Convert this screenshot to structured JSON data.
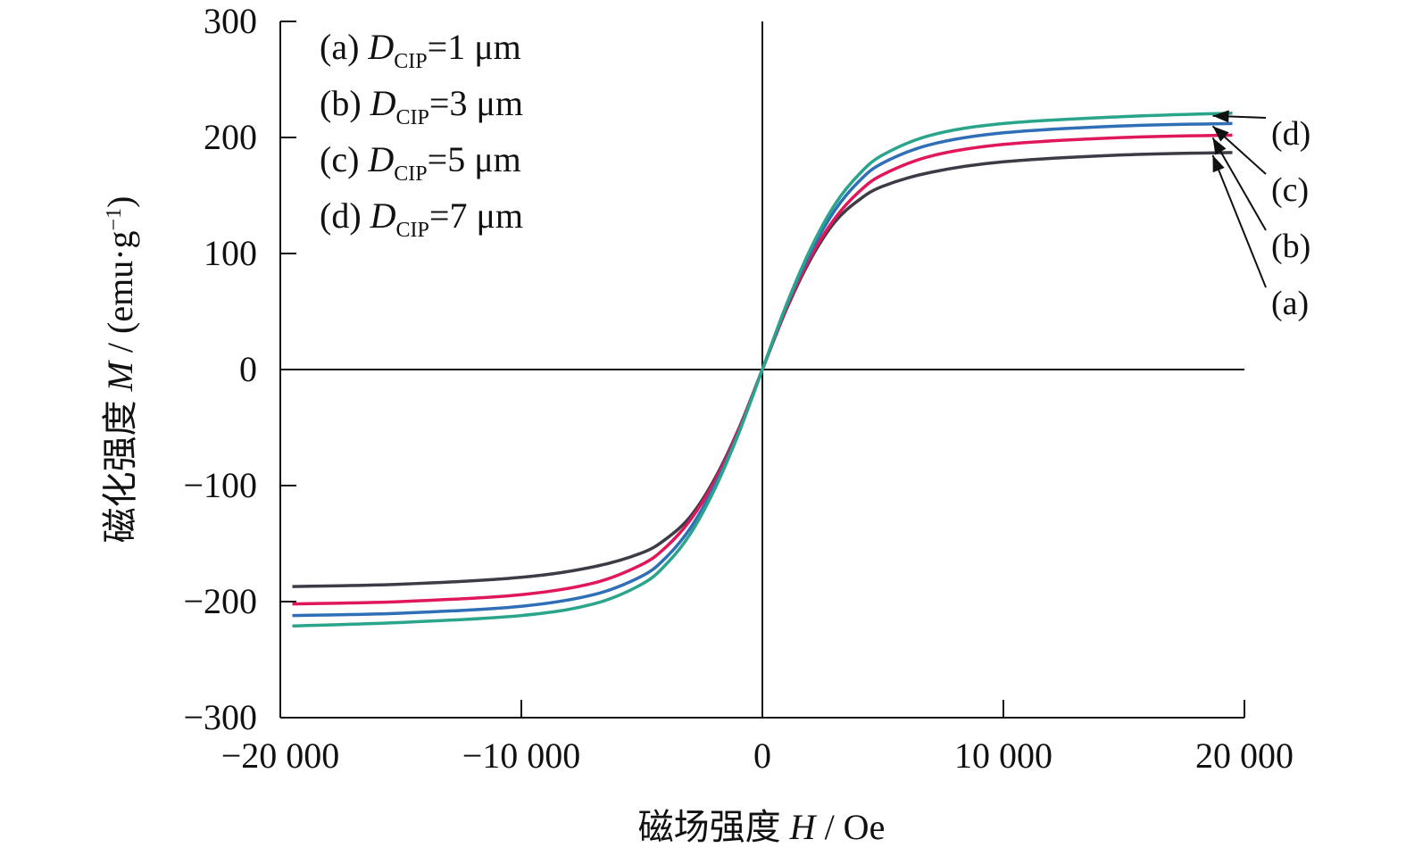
{
  "chart_data": {
    "type": "line",
    "xlabel": {
      "prefix": "磁场强度 ",
      "var": "H",
      "suffix": " / Oe"
    },
    "ylabel": {
      "prefix": "磁化强度 ",
      "var": "M",
      "suffix": " / (emu·g",
      "sup": "−1",
      "close": ")"
    },
    "xlim": [
      -20000,
      20000
    ],
    "ylim": [
      -300,
      300
    ],
    "x_ticks": [
      -20000,
      -10000,
      0,
      10000,
      20000
    ],
    "x_tick_labels": [
      "−20 000",
      "−10 000",
      "0",
      "10 000",
      "20 000"
    ],
    "y_ticks": [
      300,
      200,
      100,
      0,
      -100,
      -200,
      -300
    ],
    "y_tick_labels": [
      "300",
      "200",
      "100",
      "0",
      "−100",
      "−200",
      "−300"
    ],
    "grid": false,
    "legend_position": "top-left",
    "legend": [
      {
        "tag": "(a) ",
        "var": "D",
        "sub": "CIP",
        "rest": "=1 μm"
      },
      {
        "tag": "(b) ",
        "var": "D",
        "sub": "CIP",
        "rest": "=3 μm"
      },
      {
        "tag": "(c) ",
        "var": "D",
        "sub": "CIP",
        "rest": "=5 μm"
      },
      {
        "tag": "(d) ",
        "var": "D",
        "sub": "CIP",
        "rest": "=7 μm"
      }
    ],
    "series": [
      {
        "label": "(a)",
        "color": "#3c3c46",
        "x": [
          -19500,
          -15000,
          -10000,
          -7000,
          -5000,
          -4000,
          -3000,
          -2000,
          -1000,
          0,
          1000,
          2000,
          3000,
          4000,
          5000,
          7000,
          10000,
          15000,
          19500
        ],
        "y": [
          -187,
          -185,
          -179,
          -170,
          -158,
          -146,
          -127,
          -95,
          -52,
          0,
          52,
          95,
          127,
          146,
          158,
          170,
          179,
          185,
          187
        ]
      },
      {
        "label": "(b)",
        "color": "#e0185a",
        "x": [
          -19500,
          -15000,
          -10000,
          -7000,
          -5000,
          -4000,
          -3000,
          -2000,
          -1000,
          0,
          1000,
          2000,
          3000,
          4000,
          5000,
          7000,
          10000,
          15000,
          19500
        ],
        "y": [
          -202,
          -200,
          -194,
          -184,
          -168,
          -153,
          -130,
          -97,
          -53,
          0,
          53,
          97,
          130,
          153,
          168,
          184,
          194,
          200,
          202
        ]
      },
      {
        "label": "(c)",
        "color": "#2f6fb8",
        "x": [
          -19500,
          -15000,
          -10000,
          -7000,
          -5000,
          -4000,
          -3000,
          -2000,
          -1000,
          0,
          1000,
          2000,
          3000,
          4000,
          5000,
          7000,
          10000,
          15000,
          19500
        ],
        "y": [
          -212,
          -210,
          -204,
          -194,
          -178,
          -162,
          -137,
          -101,
          -55,
          0,
          55,
          101,
          137,
          162,
          178,
          194,
          204,
          210,
          212
        ]
      },
      {
        "label": "(d)",
        "color": "#2aa58c",
        "x": [
          -19500,
          -15000,
          -10000,
          -7000,
          -5000,
          -4000,
          -3000,
          -2000,
          -1000,
          0,
          1000,
          2000,
          3000,
          4000,
          5000,
          7000,
          10000,
          15000,
          19500
        ],
        "y": [
          -221,
          -218,
          -212,
          -202,
          -185,
          -168,
          -142,
          -104,
          -56,
          0,
          56,
          104,
          142,
          168,
          185,
          202,
          212,
          218,
          221
        ]
      }
    ]
  }
}
